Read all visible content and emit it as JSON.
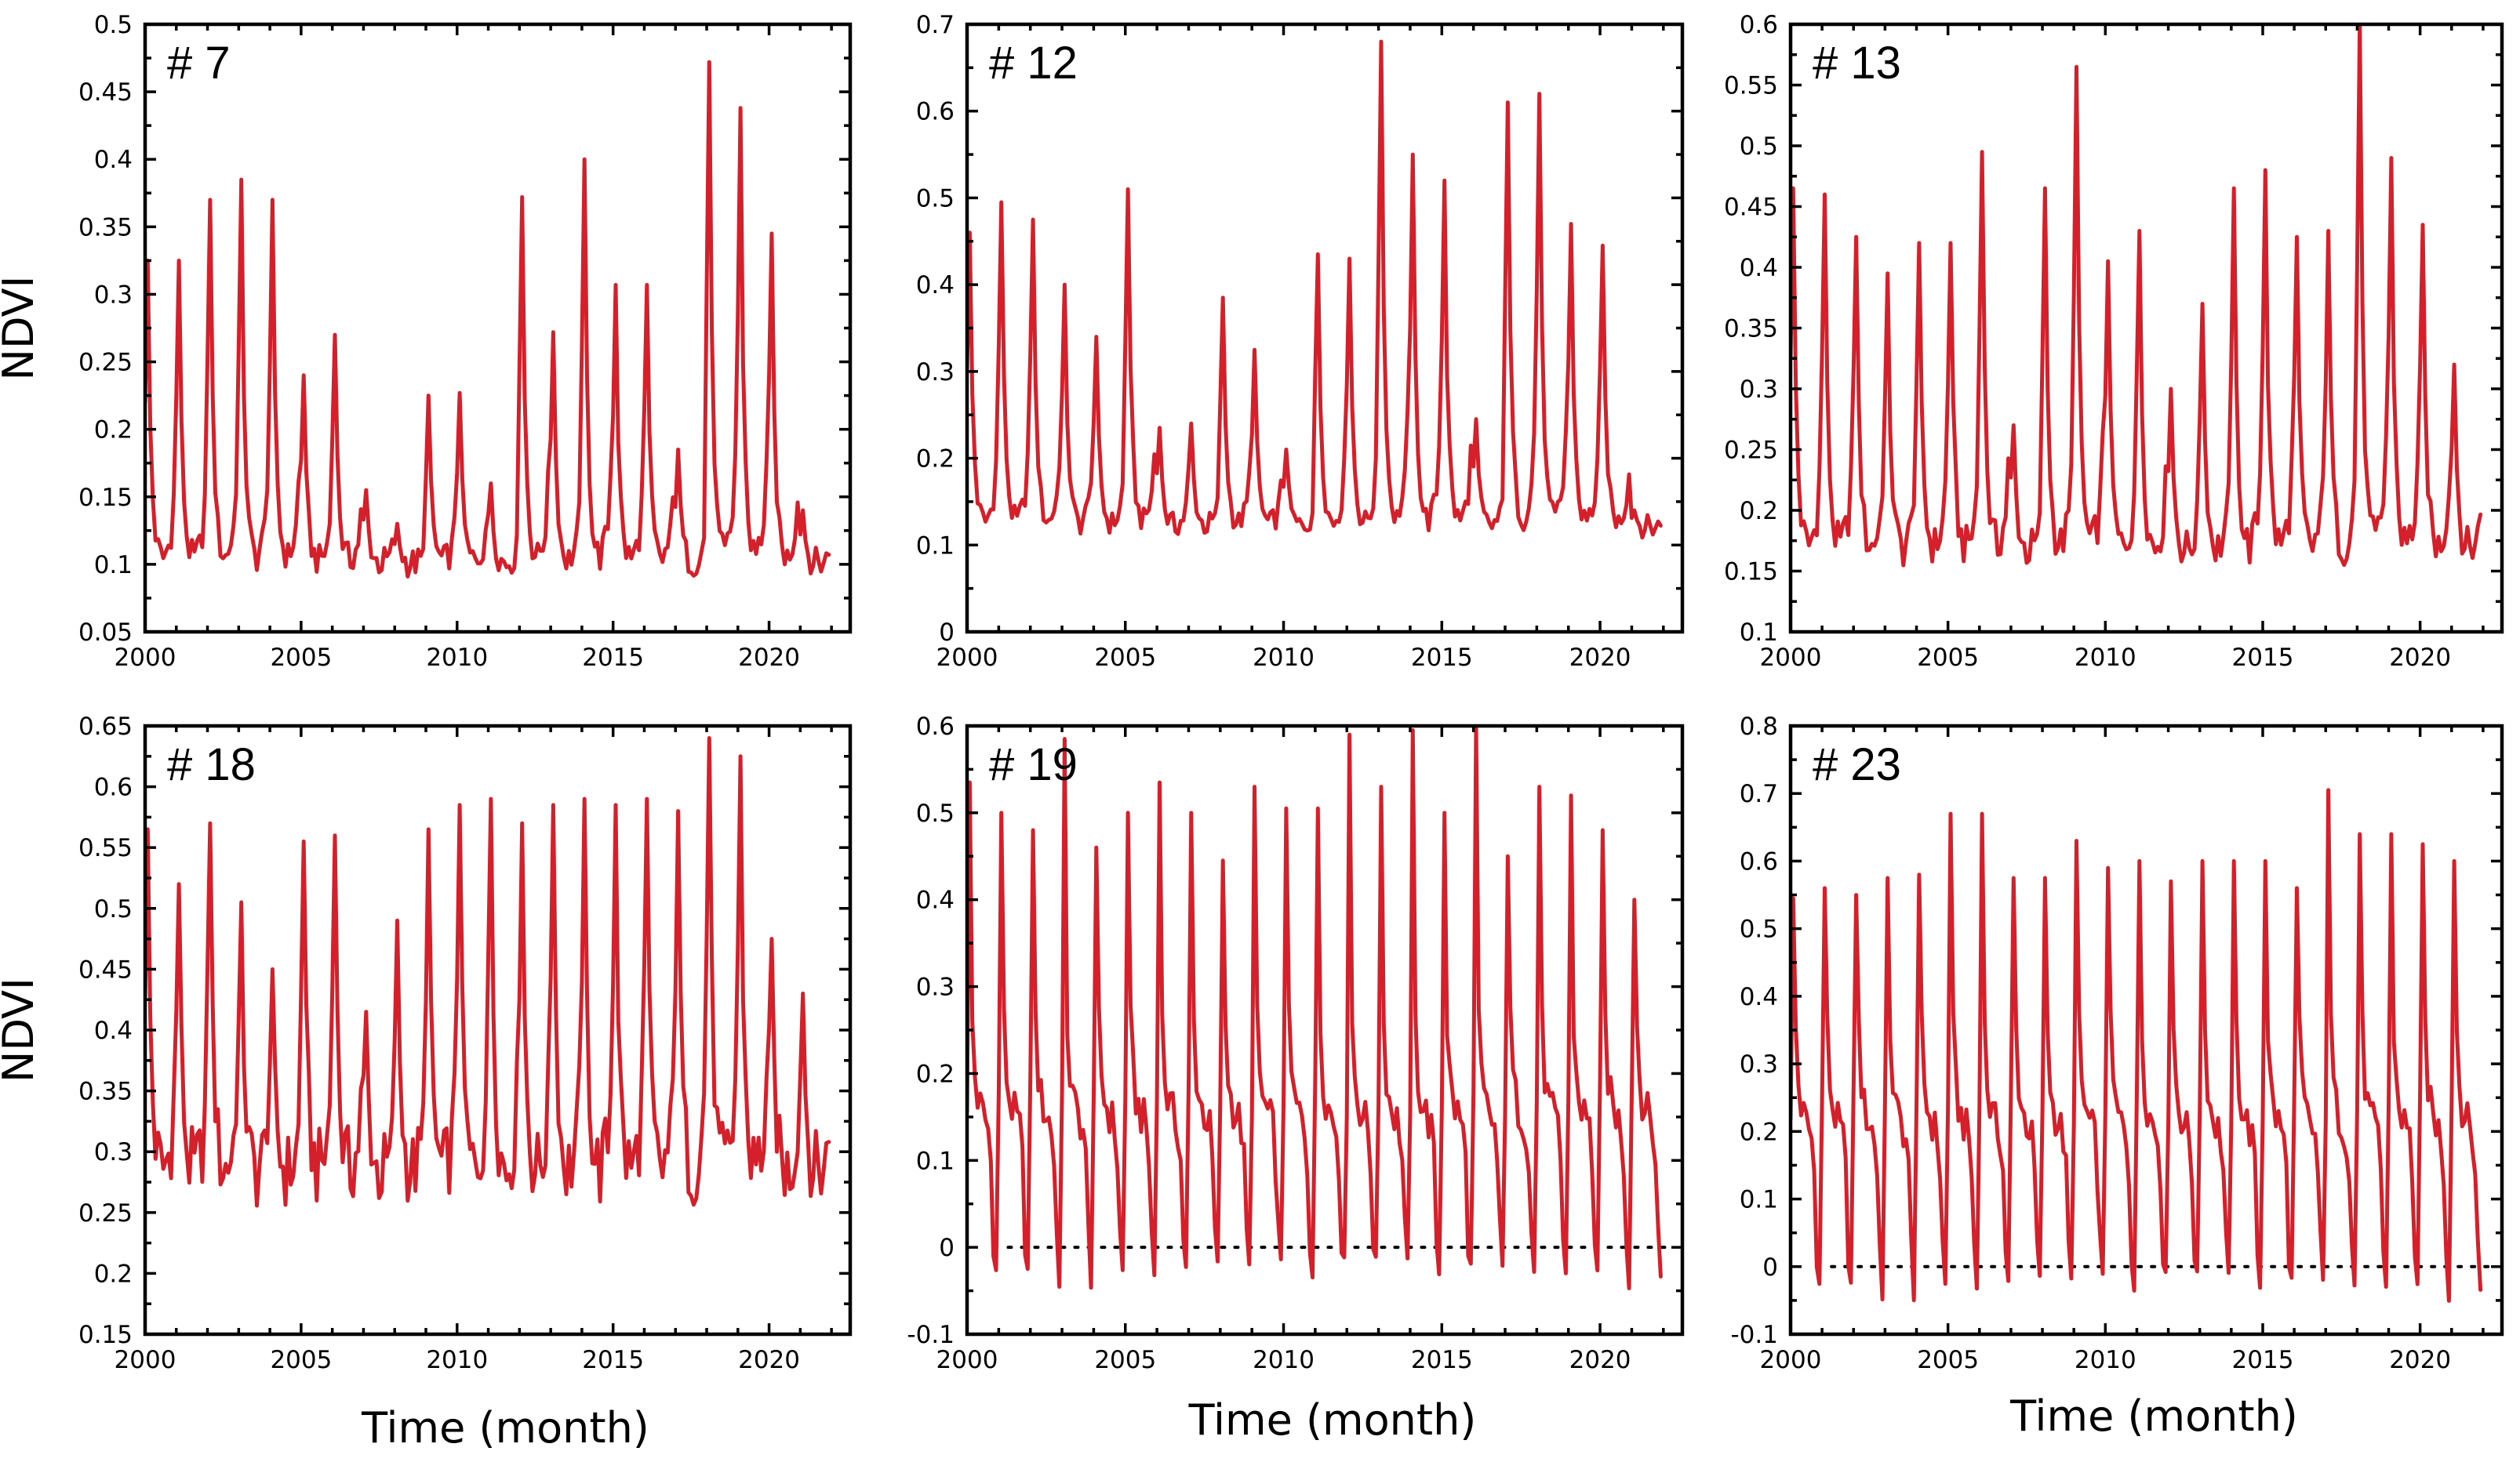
{
  "figure": {
    "x_title": "Time (month)",
    "y_title": "NDVI",
    "line_color": "#d3202a"
  },
  "chart_data": [
    {
      "type": "line",
      "label": "# 7",
      "xlim": [
        2000,
        2022.6
      ],
      "ylim": [
        0.05,
        0.5
      ],
      "xticks": [
        2000,
        2005,
        2010,
        2015,
        2020
      ],
      "yticks": [
        0.05,
        0.1,
        0.15,
        0.2,
        0.25,
        0.3,
        0.35,
        0.4,
        0.45,
        0.5
      ],
      "xlabel": "",
      "ylabel": "NDVI",
      "zero_line": false,
      "series": [
        {
          "name": "NDVI",
          "base": 0.1,
          "wobble": 0.012,
          "peaks": [
            0.325,
            0.325,
            0.37,
            0.385,
            0.37,
            0.24,
            0.27,
            0.155,
            0.13,
            0.225,
            0.227,
            0.16,
            0.372,
            0.272,
            0.4,
            0.307,
            0.307,
            0.185,
            0.472,
            0.438,
            0.345,
            0.14
          ]
        }
      ]
    },
    {
      "type": "line",
      "label": "# 12",
      "xlim": [
        2000,
        2022.6
      ],
      "ylim": [
        0,
        0.7
      ],
      "xticks": [
        2000,
        2005,
        2010,
        2015,
        2020
      ],
      "yticks": [
        0,
        0.1,
        0.2,
        0.3,
        0.4,
        0.5,
        0.6,
        0.7
      ],
      "xlabel": "",
      "ylabel": "",
      "zero_line": false,
      "series": [
        {
          "name": "NDVI",
          "base": 0.12,
          "wobble": 0.015,
          "peaks": [
            0.46,
            0.495,
            0.475,
            0.4,
            0.34,
            0.51,
            0.235,
            0.24,
            0.385,
            0.325,
            0.21,
            0.435,
            0.43,
            0.68,
            0.55,
            0.52,
            0.245,
            0.61,
            0.62,
            0.47,
            0.445,
            0.14
          ]
        }
      ]
    },
    {
      "type": "line",
      "label": "# 13",
      "xlim": [
        2000,
        2022.6
      ],
      "ylim": [
        0.1,
        0.6
      ],
      "xticks": [
        2000,
        2005,
        2010,
        2015,
        2020
      ],
      "yticks": [
        0.1,
        0.15,
        0.2,
        0.25,
        0.3,
        0.35,
        0.4,
        0.45,
        0.5,
        0.55,
        0.6
      ],
      "xlabel": "",
      "ylabel": "",
      "zero_line": false,
      "series": [
        {
          "name": "NDVI",
          "base": 0.165,
          "wobble": 0.018,
          "peaks": [
            0.465,
            0.46,
            0.425,
            0.395,
            0.42,
            0.42,
            0.495,
            0.27,
            0.465,
            0.565,
            0.405,
            0.43,
            0.3,
            0.37,
            0.465,
            0.48,
            0.425,
            0.43,
            0.6,
            0.49,
            0.435,
            0.32
          ]
        }
      ]
    },
    {
      "type": "line",
      "label": "# 18",
      "xlim": [
        2000,
        2022.6
      ],
      "ylim": [
        0.15,
        0.65
      ],
      "xticks": [
        2000,
        2005,
        2010,
        2015,
        2020
      ],
      "yticks": [
        0.15,
        0.2,
        0.25,
        0.3,
        0.35,
        0.4,
        0.45,
        0.5,
        0.55,
        0.6,
        0.65
      ],
      "xlabel": "Time (month)",
      "ylabel": "NDVI",
      "zero_line": false,
      "series": [
        {
          "name": "NDVI",
          "base": 0.28,
          "wobble": 0.035,
          "peaks": [
            0.565,
            0.52,
            0.57,
            0.505,
            0.45,
            0.555,
            0.56,
            0.415,
            0.49,
            0.565,
            0.585,
            0.59,
            0.57,
            0.585,
            0.59,
            0.585,
            0.59,
            0.58,
            0.64,
            0.625,
            0.475,
            0.43
          ]
        }
      ]
    },
    {
      "type": "line",
      "label": "# 19",
      "xlim": [
        2000,
        2022.6
      ],
      "ylim": [
        -0.1,
        0.6
      ],
      "xticks": [
        2000,
        2005,
        2010,
        2015,
        2020
      ],
      "yticks": [
        -0.1,
        0,
        0.1,
        0.2,
        0.3,
        0.4,
        0.5,
        0.6
      ],
      "xlabel": "Time (month)",
      "ylabel": "",
      "zero_line": true,
      "series": [
        {
          "name": "NDVI",
          "base": -0.03,
          "plateau": 0.31,
          "wobble": 0.025,
          "peaks": [
            0.535,
            0.5,
            0.48,
            0.585,
            0.46,
            0.5,
            0.535,
            0.5,
            0.445,
            0.53,
            0.505,
            0.505,
            0.59,
            0.53,
            0.595,
            0.5,
            0.6,
            0.45,
            0.53,
            0.52,
            0.48,
            0.4
          ]
        }
      ]
    },
    {
      "type": "line",
      "label": "# 23",
      "xlim": [
        2000,
        2022.6
      ],
      "ylim": [
        -0.1,
        0.8
      ],
      "xticks": [
        2000,
        2005,
        2010,
        2015,
        2020
      ],
      "yticks": [
        -0.1,
        0,
        0.1,
        0.2,
        0.3,
        0.4,
        0.5,
        0.6,
        0.7,
        0.8
      ],
      "xlabel": "Time (month)",
      "ylabel": "",
      "zero_line": true,
      "series": [
        {
          "name": "NDVI",
          "base": -0.03,
          "plateau": 0.42,
          "wobble": 0.03,
          "peaks": [
            0.545,
            0.56,
            0.55,
            0.575,
            0.58,
            0.67,
            0.67,
            0.575,
            0.575,
            0.63,
            0.59,
            0.6,
            0.57,
            0.6,
            0.6,
            0.6,
            0.56,
            0.705,
            0.64,
            0.64,
            0.625,
            0.6
          ]
        }
      ]
    }
  ]
}
